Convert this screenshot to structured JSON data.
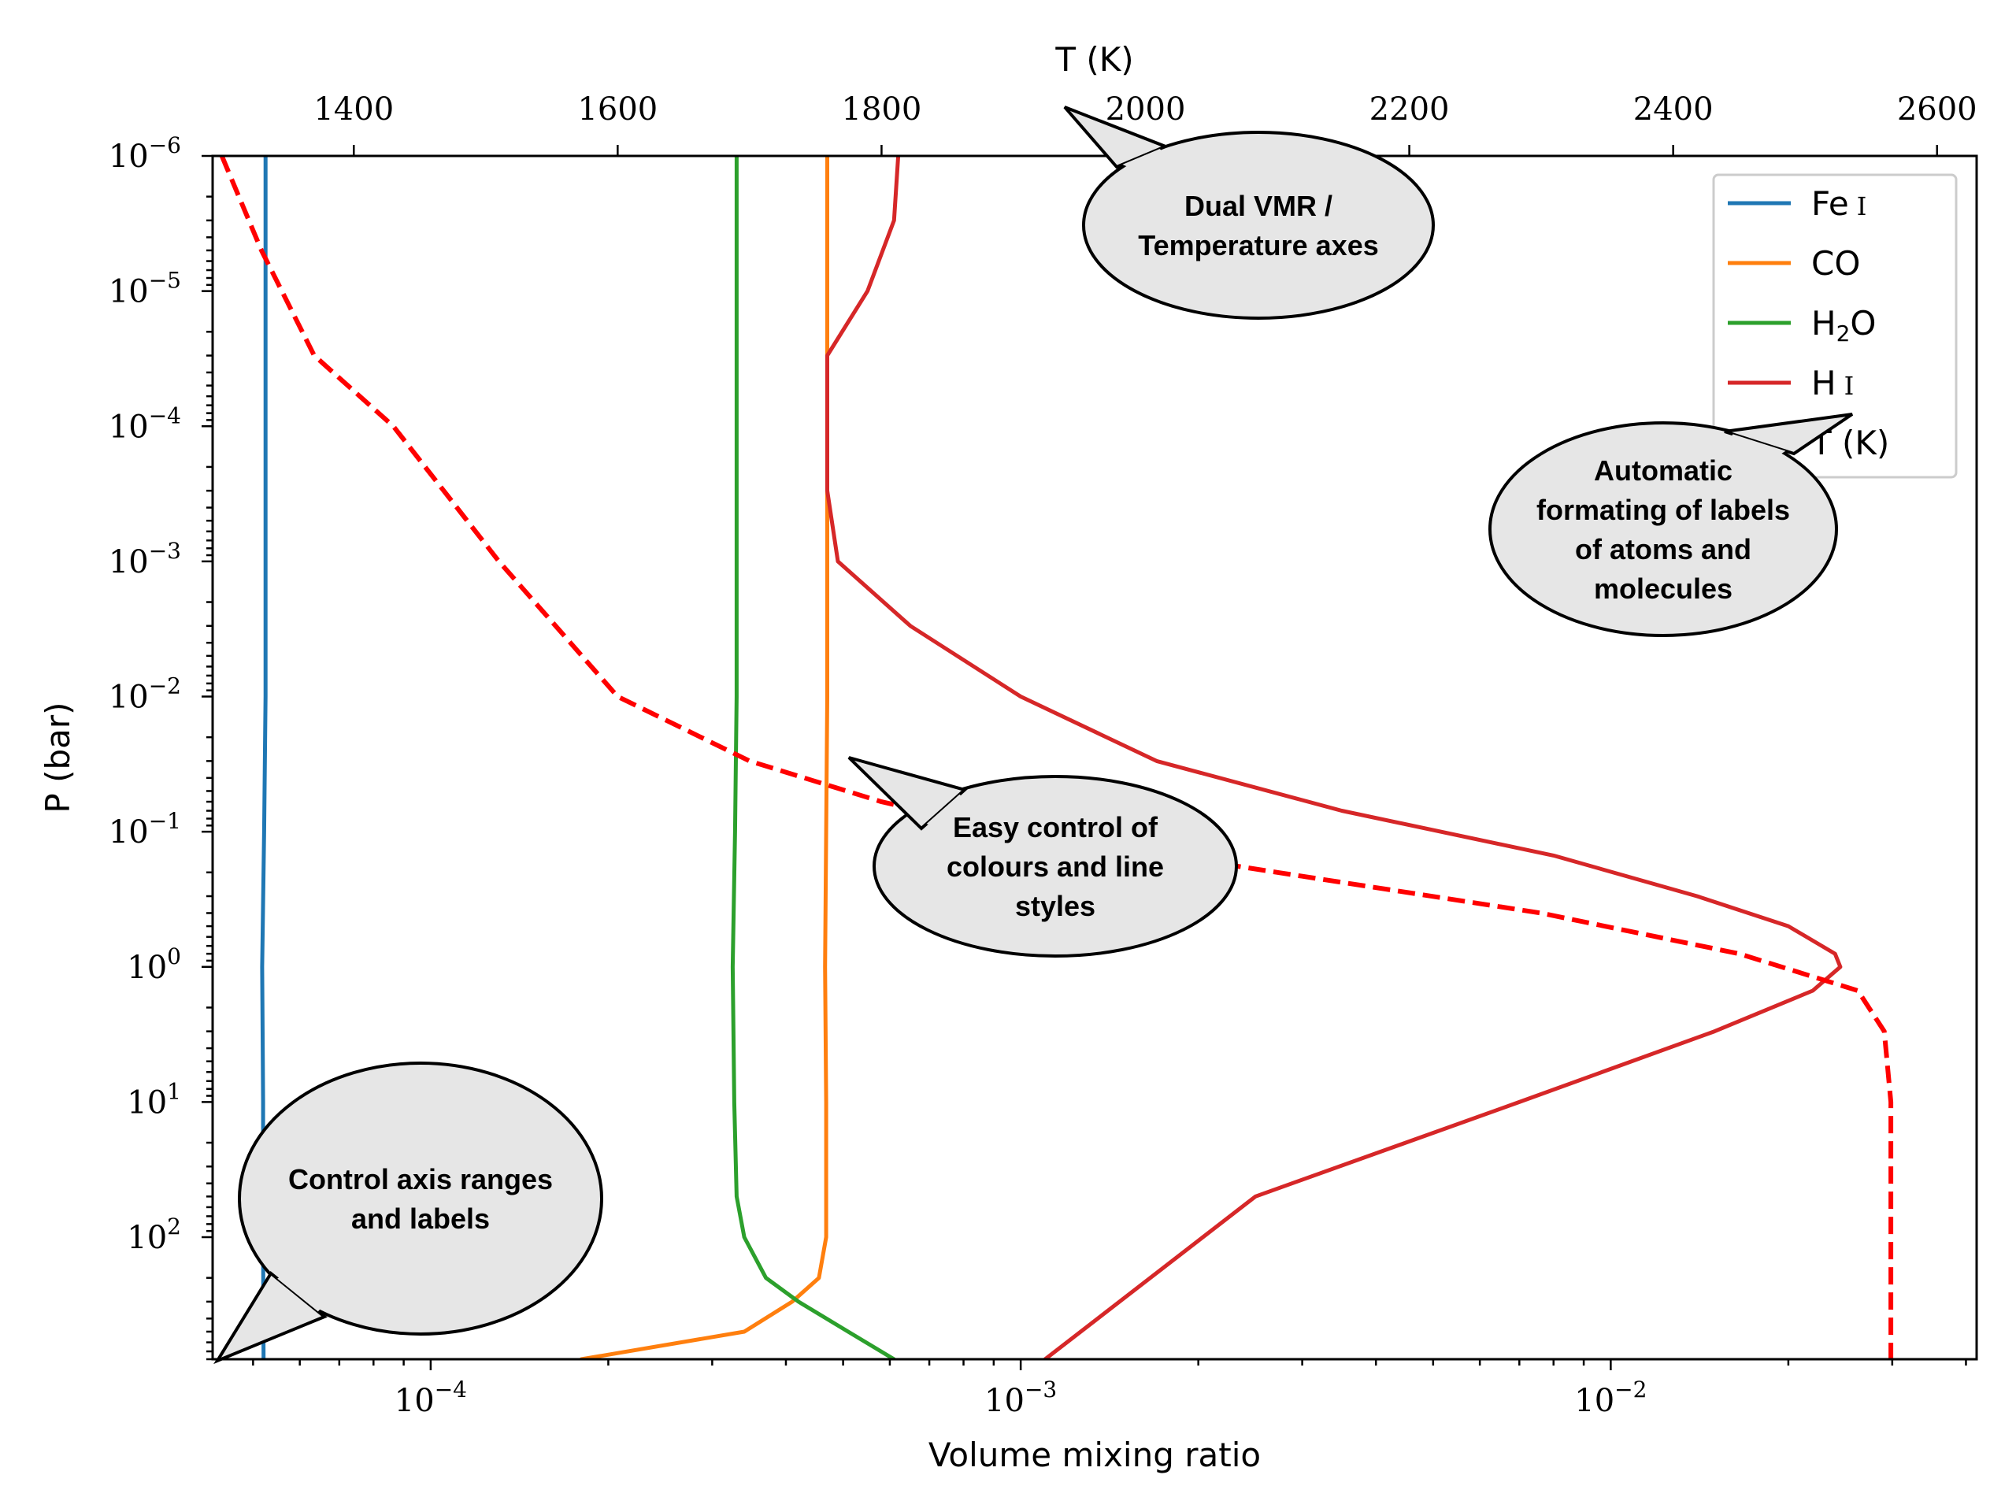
{
  "chart_data": {
    "type": "line",
    "xlabel": "Volume mixing ratio",
    "ylabel": "P (bar)",
    "top_xlabel": "T (K)",
    "xscale": "log",
    "yscale": "log",
    "y_inverted": true,
    "xlim": [
      4.27e-05,
      0.0417
    ],
    "ylim": [
      1e-06,
      800
    ],
    "top_xlim": [
      1293,
      2630
    ],
    "x_tick_labels": [
      {
        "value": 0.0001,
        "base": "10",
        "exp": "−4"
      },
      {
        "value": 0.001,
        "base": "10",
        "exp": "−3"
      },
      {
        "value": 0.01,
        "base": "10",
        "exp": "−2"
      }
    ],
    "y_tick_labels": [
      {
        "value": 1e-06,
        "base": "10",
        "exp": "−6"
      },
      {
        "value": 1e-05,
        "base": "10",
        "exp": "−5"
      },
      {
        "value": 0.0001,
        "base": "10",
        "exp": "−4"
      },
      {
        "value": 0.001,
        "base": "10",
        "exp": "−3"
      },
      {
        "value": 0.01,
        "base": "10",
        "exp": "−2"
      },
      {
        "value": 0.1,
        "base": "10",
        "exp": "−1"
      },
      {
        "value": 1,
        "base": "10",
        "exp": "0"
      },
      {
        "value": 10,
        "base": "10",
        "exp": "1"
      },
      {
        "value": 100,
        "base": "10",
        "exp": "2"
      }
    ],
    "top_tick_labels": [
      "1400",
      "1600",
      "1800",
      "2000",
      "2200",
      "2400",
      "2600"
    ],
    "legend_position": "upper-right",
    "series": [
      {
        "name": "Fe I",
        "label_main": "Fe",
        "label_sub": "",
        "label_ion": "I",
        "axis": "bottom",
        "color": "#1f77b4",
        "dashed": false,
        "points": [
          [
            5.25e-05,
            1e-06
          ],
          [
            5.25e-05,
            0.0001
          ],
          [
            5.25e-05,
            0.01
          ],
          [
            5.22e-05,
            0.1
          ],
          [
            5.18e-05,
            1
          ],
          [
            5.2e-05,
            10
          ],
          [
            5.2e-05,
            100
          ],
          [
            5.21e-05,
            800
          ]
        ]
      },
      {
        "name": "CO",
        "label_main": "CO",
        "label_sub": "",
        "label_ion": "",
        "axis": "bottom",
        "color": "#ff7f0e",
        "dashed": false,
        "points": [
          [
            0.00047,
            1e-06
          ],
          [
            0.00047,
            0.0001
          ],
          [
            0.00047,
            0.01
          ],
          [
            0.000468,
            0.1
          ],
          [
            0.000466,
            1
          ],
          [
            0.000468,
            10
          ],
          [
            0.000468,
            100
          ],
          [
            0.000455,
            200
          ],
          [
            0.00041,
            300
          ],
          [
            0.00034,
            500
          ],
          [
            0.00018,
            800
          ]
        ]
      },
      {
        "name": "H₂O",
        "label_main": "H",
        "label_sub": "2",
        "label_ion": "",
        "label_tail": "O",
        "axis": "bottom",
        "color": "#2ca02c",
        "dashed": false,
        "points": [
          [
            0.00033,
            1e-06
          ],
          [
            0.00033,
            0.0001
          ],
          [
            0.00033,
            0.01
          ],
          [
            0.000328,
            0.1
          ],
          [
            0.000325,
            1
          ],
          [
            0.000327,
            10
          ],
          [
            0.00033,
            50
          ],
          [
            0.00034,
            100
          ],
          [
            0.00037,
            200
          ],
          [
            0.00042,
            300
          ],
          [
            0.00051,
            500
          ],
          [
            0.00061,
            800
          ]
        ]
      },
      {
        "name": "H I",
        "label_main": "H",
        "label_sub": "",
        "label_ion": "I",
        "axis": "bottom",
        "color": "#d62728",
        "dashed": false,
        "points": [
          [
            0.00062,
            1e-06
          ],
          [
            0.00061,
            3e-06
          ],
          [
            0.00055,
            1e-05
          ],
          [
            0.00047,
            3e-05
          ],
          [
            0.00047,
            0.0001
          ],
          [
            0.00047,
            0.0003
          ],
          [
            0.00049,
            0.001
          ],
          [
            0.00065,
            0.003
          ],
          [
            0.001,
            0.01
          ],
          [
            0.0017,
            0.03
          ],
          [
            0.0035,
            0.07
          ],
          [
            0.008,
            0.15
          ],
          [
            0.014,
            0.3
          ],
          [
            0.02,
            0.5
          ],
          [
            0.024,
            0.8
          ],
          [
            0.0245,
            1
          ],
          [
            0.022,
            1.5
          ],
          [
            0.015,
            3
          ],
          [
            0.007,
            10
          ],
          [
            0.0025,
            50
          ],
          [
            0.0011,
            800
          ]
        ]
      },
      {
        "name": "T (K)",
        "label_main": "T (K)",
        "label_sub": "",
        "label_ion": "",
        "axis": "top",
        "color": "#ff0000",
        "dashed": true,
        "points": [
          [
            1300,
            1e-06
          ],
          [
            1330,
            5e-06
          ],
          [
            1370,
            3e-05
          ],
          [
            1430,
            0.0001
          ],
          [
            1510,
            0.001
          ],
          [
            1600,
            0.01
          ],
          [
            1700,
            0.03
          ],
          [
            1800,
            0.06
          ],
          [
            1900,
            0.1
          ],
          [
            2100,
            0.2
          ],
          [
            2300,
            0.4
          ],
          [
            2450,
            0.8
          ],
          [
            2540,
            1.5
          ],
          [
            2560,
            3
          ],
          [
            2565,
            10
          ],
          [
            2565,
            100
          ],
          [
            2565,
            800
          ]
        ]
      }
    ],
    "annotations": [
      {
        "lines": [
          "Dual VMR /",
          "Temperature axes"
        ]
      },
      {
        "lines": [
          "Automatic",
          "formating of labels",
          "of atoms and",
          "molecules"
        ]
      },
      {
        "lines": [
          "Easy control of",
          "colours and line",
          "styles"
        ]
      },
      {
        "lines": [
          "Control axis ranges",
          "and labels"
        ]
      }
    ]
  }
}
